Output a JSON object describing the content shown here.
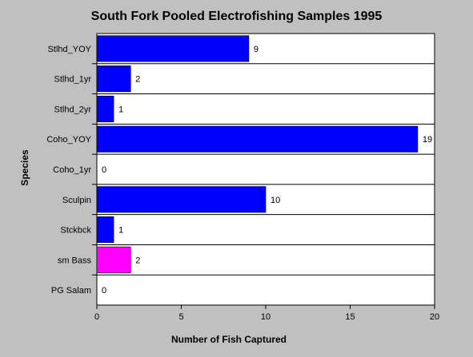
{
  "chart_data": {
    "type": "bar",
    "orientation": "horizontal",
    "title": "South Fork Pooled Electrofishing Samples 1995",
    "xlabel": "Number of Fish Captured",
    "ylabel": "Species",
    "xlim": [
      0,
      20
    ],
    "x_ticks": [
      0,
      5,
      10,
      15,
      20
    ],
    "grid": false,
    "categories": [
      "Stlhd_YOY",
      "Stlhd_1yr",
      "Stlhd_2yr",
      "Coho_YOY",
      "Coho_1yr",
      "Sculpin",
      "Stckbck",
      "sm Bass",
      "PG Salam"
    ],
    "values": [
      9,
      2,
      1,
      19,
      0,
      10,
      1,
      2,
      0
    ],
    "bar_colors": [
      "#0000ff",
      "#0000ff",
      "#0000ff",
      "#0000ff",
      "#0000ff",
      "#0000ff",
      "#0000ff",
      "#ff00ff",
      "#0000ff"
    ]
  }
}
